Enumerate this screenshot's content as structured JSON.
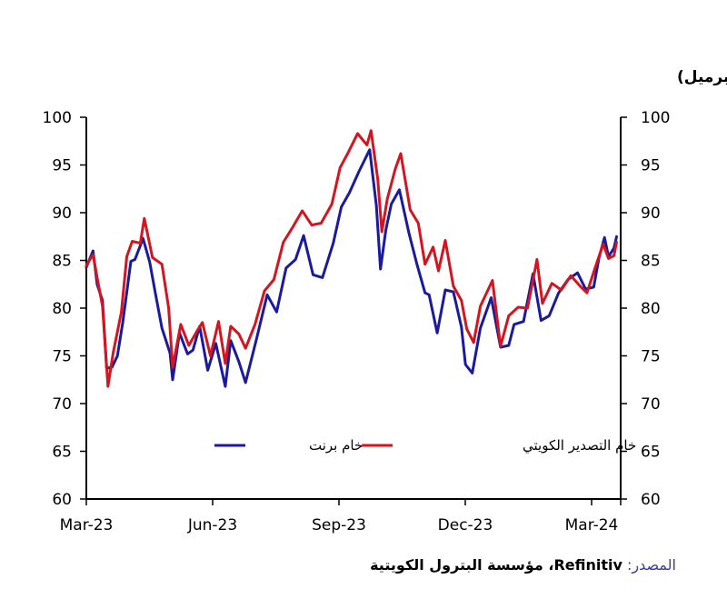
{
  "chart_data": {
    "type": "line",
    "unit_label": "(دولار/ برميل)",
    "x_ticks": [
      "Mar-23",
      "Jun-23",
      "Sep-23",
      "Dec-23",
      "Mar-24"
    ],
    "x_range": [
      "2023-03-01",
      "2024-03-31"
    ],
    "ylim": [
      60,
      100
    ],
    "yticks": [
      60,
      65,
      70,
      75,
      80,
      85,
      90,
      95,
      100
    ],
    "legend_position": "center",
    "series": [
      {
        "name": "خام برنت",
        "color": "#1a1a9c",
        "points": [
          [
            "2023-03-01",
            84.3
          ],
          [
            "2023-03-06",
            86.0
          ],
          [
            "2023-03-09",
            82.5
          ],
          [
            "2023-03-13",
            80.8
          ],
          [
            "2023-03-16",
            73.7
          ],
          [
            "2023-03-20",
            73.8
          ],
          [
            "2023-03-24",
            75.0
          ],
          [
            "2023-03-28",
            78.5
          ],
          [
            "2023-04-03",
            84.9
          ],
          [
            "2023-04-06",
            85.1
          ],
          [
            "2023-04-12",
            87.3
          ],
          [
            "2023-04-17",
            84.8
          ],
          [
            "2023-04-21",
            81.7
          ],
          [
            "2023-04-26",
            77.9
          ],
          [
            "2023-05-02",
            75.3
          ],
          [
            "2023-05-04",
            72.5
          ],
          [
            "2023-05-09",
            77.4
          ],
          [
            "2023-05-15",
            75.2
          ],
          [
            "2023-05-19",
            75.6
          ],
          [
            "2023-05-24",
            78.1
          ],
          [
            "2023-05-30",
            73.5
          ],
          [
            "2023-06-05",
            76.3
          ],
          [
            "2023-06-12",
            71.8
          ],
          [
            "2023-06-16",
            76.6
          ],
          [
            "2023-06-22",
            74.4
          ],
          [
            "2023-06-27",
            72.2
          ],
          [
            "2023-07-05",
            76.7
          ],
          [
            "2023-07-13",
            81.4
          ],
          [
            "2023-07-20",
            79.6
          ],
          [
            "2023-07-27",
            84.2
          ],
          [
            "2023-08-03",
            85.1
          ],
          [
            "2023-08-09",
            87.6
          ],
          [
            "2023-08-16",
            83.5
          ],
          [
            "2023-08-23",
            83.2
          ],
          [
            "2023-08-31",
            86.8
          ],
          [
            "2023-09-06",
            90.6
          ],
          [
            "2023-09-12",
            92.1
          ],
          [
            "2023-09-19",
            94.3
          ],
          [
            "2023-09-27",
            96.6
          ],
          [
            "2023-10-02",
            90.7
          ],
          [
            "2023-10-05",
            84.1
          ],
          [
            "2023-10-09",
            88.2
          ],
          [
            "2023-10-13",
            90.9
          ],
          [
            "2023-10-19",
            92.4
          ],
          [
            "2023-10-26",
            87.9
          ],
          [
            "2023-11-01",
            84.6
          ],
          [
            "2023-11-07",
            81.6
          ],
          [
            "2023-11-10",
            81.4
          ],
          [
            "2023-11-16",
            77.4
          ],
          [
            "2023-11-22",
            81.9
          ],
          [
            "2023-11-28",
            81.7
          ],
          [
            "2023-12-04",
            78.0
          ],
          [
            "2023-12-07",
            74.1
          ],
          [
            "2023-12-12",
            73.2
          ],
          [
            "2023-12-18",
            77.9
          ],
          [
            "2023-12-26",
            81.1
          ],
          [
            "2024-01-02",
            75.9
          ],
          [
            "2024-01-08",
            76.1
          ],
          [
            "2024-01-12",
            78.3
          ],
          [
            "2024-01-19",
            78.6
          ],
          [
            "2024-01-26",
            83.6
          ],
          [
            "2024-02-01",
            78.7
          ],
          [
            "2024-02-07",
            79.2
          ],
          [
            "2024-02-14",
            81.6
          ],
          [
            "2024-02-21",
            83.0
          ],
          [
            "2024-02-28",
            83.7
          ],
          [
            "2024-03-05",
            82.0
          ],
          [
            "2024-03-11",
            82.2
          ],
          [
            "2024-03-15",
            85.3
          ],
          [
            "2024-03-19",
            87.4
          ],
          [
            "2024-03-22",
            85.4
          ],
          [
            "2024-03-26",
            86.3
          ],
          [
            "2024-03-28",
            87.5
          ]
        ]
      },
      {
        "name": "خام التصدير الكويتي",
        "color": "#d4141e",
        "points": [
          [
            "2023-03-01",
            84.5
          ],
          [
            "2023-03-06",
            85.6
          ],
          [
            "2023-03-09",
            83.2
          ],
          [
            "2023-03-13",
            80.2
          ],
          [
            "2023-03-17",
            71.8
          ],
          [
            "2023-03-21",
            75.4
          ],
          [
            "2023-03-27",
            79.6
          ],
          [
            "2023-03-31",
            85.4
          ],
          [
            "2023-04-04",
            87.0
          ],
          [
            "2023-04-10",
            86.8
          ],
          [
            "2023-04-13",
            89.4
          ],
          [
            "2023-04-19",
            85.3
          ],
          [
            "2023-04-26",
            84.6
          ],
          [
            "2023-05-01",
            80.0
          ],
          [
            "2023-05-04",
            73.8
          ],
          [
            "2023-05-10",
            78.3
          ],
          [
            "2023-05-16",
            76.1
          ],
          [
            "2023-05-22",
            77.6
          ],
          [
            "2023-05-26",
            78.5
          ],
          [
            "2023-06-01",
            75.0
          ],
          [
            "2023-06-07",
            78.6
          ],
          [
            "2023-06-12",
            74.2
          ],
          [
            "2023-06-16",
            78.1
          ],
          [
            "2023-06-22",
            77.3
          ],
          [
            "2023-06-27",
            75.8
          ],
          [
            "2023-07-04",
            78.3
          ],
          [
            "2023-07-11",
            81.8
          ],
          [
            "2023-07-18",
            83.0
          ],
          [
            "2023-07-25",
            86.9
          ],
          [
            "2023-08-01",
            88.5
          ],
          [
            "2023-08-08",
            90.2
          ],
          [
            "2023-08-15",
            88.7
          ],
          [
            "2023-08-22",
            88.9
          ],
          [
            "2023-08-30",
            90.9
          ],
          [
            "2023-09-05",
            94.7
          ],
          [
            "2023-09-11",
            96.3
          ],
          [
            "2023-09-18",
            98.3
          ],
          [
            "2023-09-25",
            97.1
          ],
          [
            "2023-09-28",
            98.6
          ],
          [
            "2023-10-03",
            93.5
          ],
          [
            "2023-10-06",
            88.0
          ],
          [
            "2023-10-10",
            91.4
          ],
          [
            "2023-10-16",
            94.6
          ],
          [
            "2023-10-20",
            96.2
          ],
          [
            "2023-10-27",
            90.3
          ],
          [
            "2023-11-02",
            88.9
          ],
          [
            "2023-11-07",
            84.6
          ],
          [
            "2023-11-13",
            86.4
          ],
          [
            "2023-11-17",
            83.9
          ],
          [
            "2023-11-22",
            87.1
          ],
          [
            "2023-11-28",
            82.3
          ],
          [
            "2023-12-04",
            80.8
          ],
          [
            "2023-12-08",
            77.8
          ],
          [
            "2023-12-13",
            76.4
          ],
          [
            "2023-12-18",
            80.2
          ],
          [
            "2023-12-27",
            82.9
          ],
          [
            "2024-01-02",
            76.0
          ],
          [
            "2024-01-08",
            79.2
          ],
          [
            "2024-01-15",
            80.1
          ],
          [
            "2024-01-22",
            80.0
          ],
          [
            "2024-01-29",
            85.1
          ],
          [
            "2024-02-02",
            80.5
          ],
          [
            "2024-02-09",
            82.6
          ],
          [
            "2024-02-16",
            81.9
          ],
          [
            "2024-02-23",
            83.4
          ],
          [
            "2024-03-01",
            82.3
          ],
          [
            "2024-03-06",
            81.6
          ],
          [
            "2024-03-12",
            84.2
          ],
          [
            "2024-03-18",
            86.7
          ],
          [
            "2024-03-22",
            85.2
          ],
          [
            "2024-03-26",
            85.5
          ],
          [
            "2024-03-28",
            86.9
          ]
        ]
      }
    ]
  },
  "source": {
    "label": "المصدر:",
    "text": "Refinitiv، مؤسسة البترول الكويتية"
  }
}
